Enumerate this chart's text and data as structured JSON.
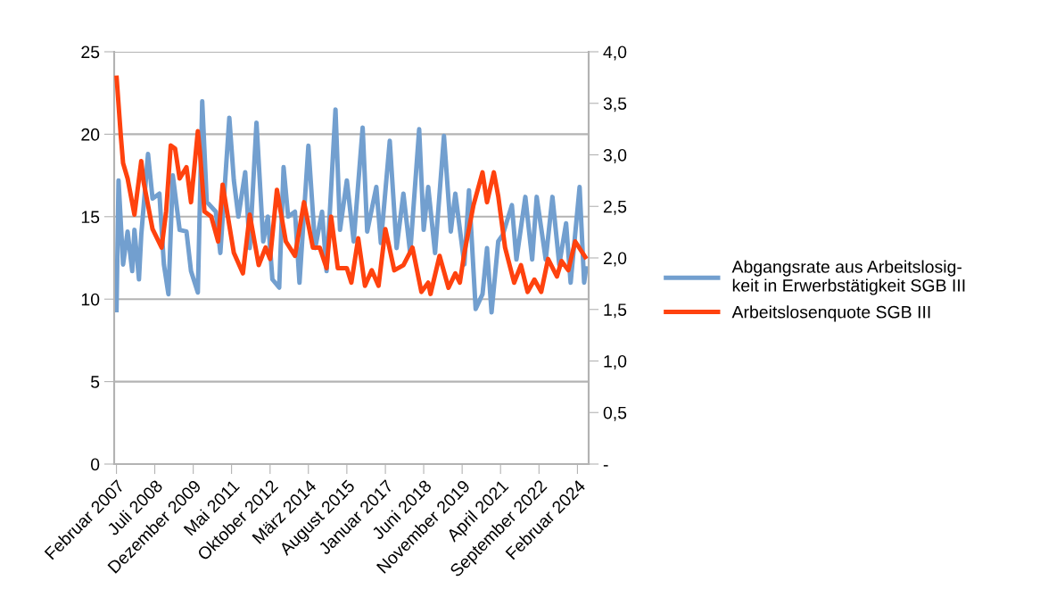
{
  "chart_data": {
    "type": "line",
    "series": [
      {
        "name": "Abgangsrate aus Arbeitslosig-\nkeit in Erwerbstätigkeit SGB III",
        "color": "#729fcf",
        "axis": "y",
        "x": [
          "2007-02",
          "2007-03",
          "2007-05",
          "2007-07",
          "2007-09",
          "2007-10",
          "2007-12",
          "2008-01",
          "2008-04",
          "2008-06",
          "2008-09",
          "2008-11",
          "2009-01",
          "2009-03",
          "2009-06",
          "2009-09",
          "2009-11",
          "2010-02",
          "2010-04",
          "2010-06",
          "2010-10",
          "2010-12",
          "2011-04",
          "2011-06",
          "2011-08",
          "2011-11",
          "2012-01",
          "2012-04",
          "2012-07",
          "2012-09",
          "2012-11",
          "2013-02",
          "2013-04",
          "2013-06",
          "2013-09",
          "2013-11",
          "2014-03",
          "2014-06",
          "2014-09",
          "2014-11",
          "2015-03",
          "2015-05",
          "2015-08",
          "2015-11",
          "2016-03",
          "2016-05",
          "2016-09",
          "2016-11",
          "2017-03",
          "2017-06",
          "2017-09",
          "2017-12",
          "2018-04",
          "2018-06",
          "2018-08",
          "2018-11",
          "2019-03",
          "2019-06",
          "2019-08",
          "2019-12",
          "2020-02",
          "2020-05",
          "2020-08",
          "2020-10",
          "2020-12",
          "2021-03",
          "2021-05",
          "2021-09",
          "2021-11",
          "2022-03",
          "2022-06",
          "2022-08",
          "2022-12",
          "2023-03",
          "2023-06",
          "2023-09",
          "2023-11",
          "2024-03",
          "2024-05",
          "2024-06"
        ],
        "values": [
          9.2,
          17.2,
          12.1,
          14.1,
          11.7,
          14.2,
          11.2,
          13.9,
          18.8,
          16.1,
          16.4,
          12.1,
          10.3,
          17.5,
          14.2,
          14.1,
          11.7,
          10.4,
          22.0,
          15.9,
          15.3,
          12.8,
          21.0,
          17.2,
          15.0,
          17.7,
          13.1,
          20.7,
          13.5,
          15.0,
          11.2,
          10.7,
          18.0,
          15.0,
          15.3,
          11.0,
          19.3,
          13.1,
          15.3,
          11.7,
          21.5,
          14.2,
          17.2,
          13.5,
          20.4,
          14.1,
          16.8,
          13.4,
          19.6,
          13.1,
          16.4,
          12.8,
          20.3,
          14.2,
          16.8,
          12.8,
          19.9,
          14.1,
          16.4,
          12.1,
          16.6,
          9.4,
          10.3,
          13.1,
          9.2,
          13.5,
          13.9,
          15.7,
          12.4,
          16.2,
          12.4,
          16.2,
          12.4,
          16.2,
          12.1,
          14.6,
          11.0,
          16.8,
          11.0,
          12.0
        ]
      },
      {
        "name": "Arbeitslosenquote SGB III",
        "color": "#ff420e",
        "axis": "y2",
        "x": [
          "2007-02",
          "2007-04",
          "2007-05",
          "2007-07",
          "2007-10",
          "2008-01",
          "2008-02",
          "2008-06",
          "2008-10",
          "2008-12",
          "2009-02",
          "2009-04",
          "2009-06",
          "2009-09",
          "2009-11",
          "2010-02",
          "2010-03",
          "2010-05",
          "2010-08",
          "2010-11",
          "2011-01",
          "2011-03",
          "2011-06",
          "2011-10",
          "2012-01",
          "2012-05",
          "2012-08",
          "2012-10",
          "2013-01",
          "2013-05",
          "2013-09",
          "2014-01",
          "2014-05",
          "2014-08",
          "2014-11",
          "2015-01",
          "2015-04",
          "2015-08",
          "2015-10",
          "2016-01",
          "2016-04",
          "2016-07",
          "2016-10",
          "2017-01",
          "2017-05",
          "2017-09",
          "2018-01",
          "2018-05",
          "2018-08",
          "2018-09",
          "2019-01",
          "2019-05",
          "2019-08",
          "2019-10",
          "2019-12",
          "2020-04",
          "2020-08",
          "2020-10",
          "2021-01",
          "2021-03",
          "2021-06",
          "2021-10",
          "2022-01",
          "2022-04",
          "2022-07",
          "2022-10",
          "2023-01",
          "2023-05",
          "2023-07",
          "2023-10",
          "2024-01",
          "2024-06"
        ],
        "values": [
          3.77,
          3.18,
          2.92,
          2.77,
          2.42,
          2.94,
          2.74,
          2.28,
          2.1,
          2.45,
          3.09,
          3.06,
          2.77,
          2.88,
          2.54,
          3.23,
          3.03,
          2.45,
          2.4,
          2.16,
          2.71,
          2.45,
          2.05,
          1.85,
          2.42,
          1.93,
          2.1,
          1.99,
          2.66,
          2.16,
          2.02,
          2.54,
          2.1,
          2.1,
          1.9,
          2.4,
          1.9,
          1.9,
          1.76,
          2.19,
          1.73,
          1.88,
          1.73,
          2.28,
          1.88,
          1.93,
          2.1,
          1.67,
          1.76,
          1.65,
          2.02,
          1.71,
          1.85,
          1.76,
          2.05,
          2.51,
          2.83,
          2.54,
          2.83,
          2.6,
          2.1,
          1.76,
          1.93,
          1.67,
          1.79,
          1.67,
          1.99,
          1.82,
          1.97,
          1.88,
          2.16,
          1.99
        ]
      }
    ],
    "xlim": [
      "2007-01",
      "2024-07"
    ],
    "xticks": [
      {
        "value": "2007-02",
        "label": "Februar 2007"
      },
      {
        "value": "2008-07",
        "label": "Juli 2008"
      },
      {
        "value": "2009-12",
        "label": "Dezember 2009"
      },
      {
        "value": "2011-05",
        "label": "Mai 2011"
      },
      {
        "value": "2012-10",
        "label": "Oktober 2012"
      },
      {
        "value": "2014-03",
        "label": "März 2014"
      },
      {
        "value": "2015-08",
        "label": "August 2015"
      },
      {
        "value": "2017-01",
        "label": "Januar 2017"
      },
      {
        "value": "2018-06",
        "label": "Juni 2018"
      },
      {
        "value": "2019-11",
        "label": "November 2019"
      },
      {
        "value": "2021-04",
        "label": "April 2021"
      },
      {
        "value": "2022-09",
        "label": "September 2022"
      },
      {
        "value": "2024-02",
        "label": "Februar 2024"
      }
    ],
    "ylim": [
      0,
      25
    ],
    "yticks": [
      0,
      5,
      10,
      15,
      20,
      25
    ],
    "y2lim": [
      0,
      4
    ],
    "y2ticks": [
      {
        "value": 0,
        "label": "-"
      },
      {
        "value": 0.5,
        "label": "0,5"
      },
      {
        "value": 1,
        "label": "1,0"
      },
      {
        "value": 1.5,
        "label": "1,5"
      },
      {
        "value": 2,
        "label": "2,0"
      },
      {
        "value": 2.5,
        "label": "2,5"
      },
      {
        "value": 3,
        "label": "3,0"
      },
      {
        "value": 3.5,
        "label": "3,5"
      },
      {
        "value": 4,
        "label": "4,0"
      }
    ],
    "grid": "y",
    "legend": "right",
    "marker": "none",
    "line_style": "solid"
  }
}
